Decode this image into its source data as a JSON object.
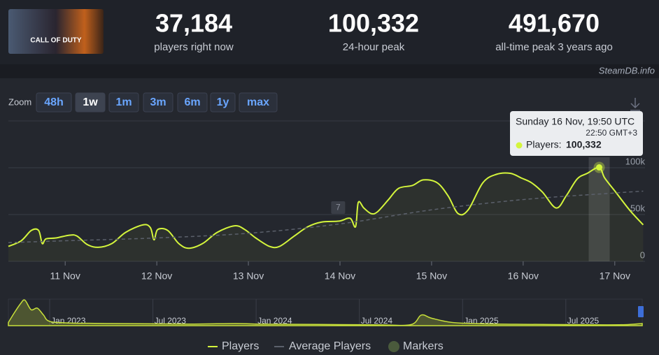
{
  "header": {
    "thumbnail_text": "CALL OF DUTY",
    "stats": [
      {
        "value": "37,184",
        "label": "players right now"
      },
      {
        "value": "100,332",
        "label": "24-hour peak"
      },
      {
        "value": "491,670",
        "label": "all-time peak 3 years ago"
      }
    ],
    "source": "SteamDB.info"
  },
  "zoom": {
    "label": "Zoom",
    "buttons": [
      "48h",
      "1w",
      "1m",
      "3m",
      "6m",
      "1y",
      "max"
    ],
    "active": "1w"
  },
  "chart_data": [
    {
      "type": "line",
      "x": [
        10.38,
        10.52,
        10.63,
        10.71,
        10.75,
        10.79,
        10.9,
        11.05,
        11.13,
        11.24,
        11.36,
        11.51,
        11.66,
        11.85,
        11.93,
        11.97,
        12.01,
        12.12,
        12.24,
        12.35,
        12.5,
        12.66,
        12.85,
        12.96,
        13.08,
        13.23,
        13.34,
        13.5,
        13.65,
        13.8,
        13.99,
        14.11,
        14.17,
        14.2,
        14.26,
        14.34,
        14.41,
        14.53,
        14.64,
        14.79,
        14.91,
        15.06,
        15.18,
        15.29,
        15.4,
        15.56,
        15.71,
        15.86,
        15.98,
        16.09,
        16.21,
        16.36,
        16.47,
        16.59,
        16.7,
        16.83,
        16.89,
        17.01,
        17.16,
        17.31
      ],
      "series": [
        {
          "name": "Players",
          "color": "#d4f53c",
          "values": [
            16000,
            22000,
            33000,
            33000,
            19000,
            24000,
            25000,
            28000,
            27000,
            18000,
            15000,
            19000,
            31000,
            39000,
            36000,
            23000,
            34000,
            33000,
            19000,
            14000,
            19000,
            31000,
            38000,
            34000,
            25000,
            16000,
            16000,
            27000,
            37000,
            42000,
            43000,
            46000,
            37000,
            63000,
            57000,
            51000,
            53000,
            66000,
            78000,
            81000,
            87000,
            84000,
            70000,
            51000,
            55000,
            84000,
            93000,
            94000,
            89000,
            84000,
            74000,
            57000,
            70000,
            88000,
            94000,
            100332,
            89000,
            74000,
            55000,
            39000
          ]
        },
        {
          "name": "Average Players",
          "color": "#5b606b",
          "dashed": true,
          "x": [
            10.38,
            11,
            12,
            13,
            14,
            15,
            16,
            17,
            17.31
          ],
          "values": [
            20000,
            22000,
            25000,
            30000,
            40000,
            55000,
            66000,
            73000,
            75000
          ]
        }
      ],
      "xlim": [
        10.38,
        17.33
      ],
      "xticks": [
        {
          "value": 11,
          "label": "11 Nov"
        },
        {
          "value": 12,
          "label": "12 Nov"
        },
        {
          "value": 13,
          "label": "13 Nov"
        },
        {
          "value": 14,
          "label": "14 Nov"
        },
        {
          "value": 15,
          "label": "15 Nov"
        },
        {
          "value": 16,
          "label": "16 Nov"
        },
        {
          "value": 17,
          "label": "17 Nov"
        }
      ],
      "ylim": [
        0,
        150000
      ],
      "yticks": [
        0,
        {
          "value": 50000,
          "label": "50k"
        },
        {
          "value": 100000,
          "label": "100k"
        }
      ],
      "grid": true,
      "tooltip": {
        "title": "Sunday 16 Nov, 19:50 UTC",
        "subtitle": "22:50 GMT+3",
        "label": "Players:",
        "value": "100,332"
      },
      "markers_name": "Markers",
      "markers": [
        {
          "x": 13.98,
          "label": "7"
        }
      ]
    },
    {
      "type": "area",
      "x": [
        2022.8,
        2022.83,
        2022.86,
        2022.88,
        2022.91,
        2022.94,
        2022.97,
        2023.0,
        2023.1,
        2023.3,
        2023.5,
        2023.7,
        2023.9,
        2024.0,
        2024.2,
        2024.4,
        2024.6,
        2024.75,
        2024.8,
        2024.85,
        2024.95,
        2025.1,
        2025.3,
        2025.5,
        2025.7,
        2025.8,
        2025.87
      ],
      "values": [
        60000,
        250000,
        420000,
        480000,
        300000,
        330000,
        200000,
        80000,
        50000,
        40000,
        35000,
        30000,
        40000,
        30000,
        25000,
        20000,
        15000,
        20000,
        200000,
        140000,
        60000,
        35000,
        25000,
        20000,
        15000,
        20000,
        40000
      ],
      "color": "#c8e03a",
      "xlim": [
        2022.8,
        2025.87
      ],
      "ylim": [
        0,
        500000
      ],
      "xticks": [
        {
          "value": 2023,
          "label": "Jan 2023"
        },
        {
          "value": 2023.5,
          "label": "Jul 2023"
        },
        {
          "value": 2024,
          "label": "Jan 2024"
        },
        {
          "value": 2024.5,
          "label": "Jul 2024"
        },
        {
          "value": 2025,
          "label": "Jan 2025"
        },
        {
          "value": 2025.5,
          "label": "Jul 2025"
        }
      ]
    }
  ]
}
